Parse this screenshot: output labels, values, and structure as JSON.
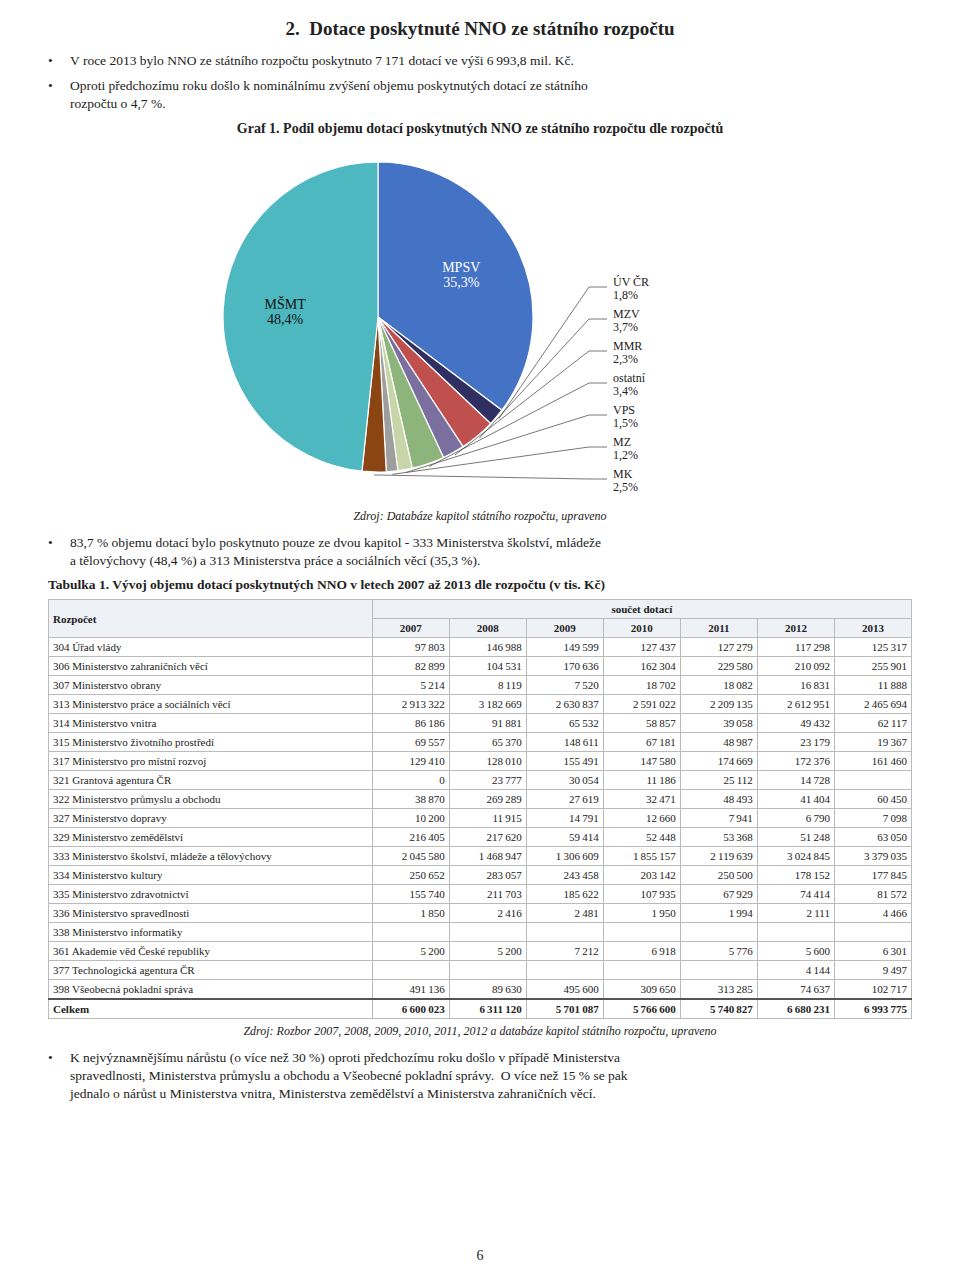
{
  "heading": "2.  Dotace poskytnuté NNO ze státního rozpočtu",
  "bullet_symbol": "•",
  "intro_bullets": [
    [
      "V roce 2013 bylo NNO ze státního rozpočtu poskytnuto 7 171 dotací ve výši 6 993,8 mil. Kč."
    ],
    [
      "Oproti předchozímu roku došlo k nominálnímu zvýšení objemu poskytnutých dotací ze státního",
      "rozpočtu o 4,7 %."
    ]
  ],
  "chart_data": {
    "type": "pie",
    "title": "Graf 1. Podíl objemu dotací poskytnutých NNO ze státního rozpočtu dle rozpočtů",
    "categories": [
      "MPSV",
      "ÚV ČR",
      "MZV",
      "MMR",
      "ostatní",
      "VPS",
      "MZ",
      "MK",
      "MŠMT"
    ],
    "values": [
      35.3,
      1.8,
      3.7,
      2.3,
      3.4,
      1.5,
      1.2,
      2.5,
      48.4
    ],
    "value_labels": [
      "35,3%",
      "1,8%",
      "3,7%",
      "2,3%",
      "3,4%",
      "1,5%",
      "1,2%",
      "2,5%",
      "48,4%"
    ],
    "colors": [
      "#4472C4",
      "#2F3061",
      "#C0504D",
      "#7B6FA0",
      "#8DB47A",
      "#C8D5A8",
      "#9E9E9E",
      "#8B4513",
      "#4DB8BF"
    ],
    "data_labels": true
  },
  "chart_source": "Zdroj: Databáze kapitol státního rozpočtu, upraveno",
  "middle_bullets": [
    [
      "83,7 % objemu dotací bylo poskytnuto pouze ze dvou kapitol - 333 Ministerstva školství, mládeže",
      "a tělovýchovy (48,4 %) a 313 Ministerstva práce a sociálních věcí (35,3 %)."
    ]
  ],
  "table": {
    "title": "Tabulka 1. Vývoj objemu dotací poskytnutých NNO v letech 2007 až 2013 dle rozpočtu (v tis. Kč)",
    "header_label": "Rozpočet",
    "header_group": "součet dotací",
    "columns": [
      "2007",
      "2008",
      "2009",
      "2010",
      "2011",
      "2012",
      "2013"
    ],
    "rows": [
      [
        "304 Úřad vlády",
        "97 803",
        "146 988",
        "149 599",
        "127 437",
        "127 279",
        "117 298",
        "125 317"
      ],
      [
        "306 Ministerstvo zahraničních věcí",
        "82 899",
        "104 531",
        "170 636",
        "162 304",
        "229 580",
        "210 092",
        "255 901"
      ],
      [
        "307 Ministerstvo obrany",
        "5 214",
        "8 119",
        "7 520",
        "18 702",
        "18 082",
        "16 831",
        "11 888"
      ],
      [
        "313 Ministerstvo práce a sociálních věcí",
        "2 913 322",
        "3 182 669",
        "2 630 837",
        "2 591 022",
        "2 209 135",
        "2 612 951",
        "2 465 694"
      ],
      [
        "314 Ministerstvo vnitra",
        "86 186",
        "91 881",
        "65 532",
        "58 857",
        "39 058",
        "49 432",
        "62 117"
      ],
      [
        "315 Ministerstvo životního prostředí",
        "69 557",
        "65 370",
        "148 611",
        "67 181",
        "48 987",
        "23 179",
        "19 367"
      ],
      [
        "317 Ministerstvo pro místní rozvoj",
        "129 410",
        "128 010",
        "155 491",
        "147 580",
        "174 669",
        "172 376",
        "161 460"
      ],
      [
        "321 Grantová agentura ČR",
        "0",
        "23 777",
        "30 054",
        "11 186",
        "25 112",
        "14 728",
        null
      ],
      [
        "322 Ministerstvo průmyslu a obchodu",
        "38 870",
        "269 289",
        "27 619",
        "32 471",
        "48 493",
        "41 404",
        "60 450"
      ],
      [
        "327 Ministerstvo dopravy",
        "10 200",
        "11 915",
        "14 791",
        "12 660",
        "7 941",
        "6 790",
        "7 098"
      ],
      [
        "329 Ministerstvo zemědělství",
        "216 405",
        "217 620",
        "59 414",
        "52 448",
        "53 368",
        "51 248",
        "63 050"
      ],
      [
        "333 Ministerstvo školství, mládeže a tělovýchovy",
        "2 045 580",
        "1 468 947",
        "1 306 609",
        "1 855 157",
        "2 119 639",
        "3 024 845",
        "3 379 035"
      ],
      [
        "334 Ministerstvo kultury",
        "250 652",
        "283 057",
        "243 458",
        "203 142",
        "250 500",
        "178 152",
        "177 845"
      ],
      [
        "335 Ministerstvo zdravotnictví",
        "155 740",
        "211 703",
        "185 622",
        "107 935",
        "67 929",
        "74 414",
        "81 572"
      ],
      [
        "336 Ministerstvo spravedlnosti",
        "1 850",
        "2 416",
        "2 481",
        "1 950",
        "1 994",
        "2 111",
        "4 466"
      ],
      [
        "338 Ministerstvo informatiky",
        null,
        null,
        null,
        null,
        null,
        null,
        null
      ],
      [
        "361 Akademie věd České republiky",
        "5 200",
        "5 200",
        "7 212",
        "6 918",
        "5 776",
        "5 600",
        "6 301"
      ],
      [
        "377 Technologická agentura ČR",
        null,
        null,
        null,
        null,
        null,
        "4 144",
        "9 497"
      ],
      [
        "398 Všeobecná pokladní správa",
        "491 136",
        "89 630",
        "495 600",
        "309 650",
        "313 285",
        "74 637",
        "102 717"
      ]
    ],
    "total": [
      "Celkem",
      "6 600 023",
      "6 311 120",
      "5 701 087",
      "5 766 600",
      "5 740 827",
      "6 680 231",
      "6 993 775"
    ],
    "source": "Zdroj: Rozbor 2007, 2008, 2009, 2010, 2011, 2012 a databáze kapitol státního rozpočtu, upraveno"
  },
  "closing_bullets": [
    [
      "K nejvýznамnějšímu nárůstu (o více než 30 %) oproti předchozímu roku došlo v případě Ministerstva",
      "spravedlnosti, Ministerstva průmyslu a obchodu a Všeobecné pokladní správy.  O více než 15 % se pak",
      "jednalo o nárůst u Ministerstva vnitra, Ministerstva zemědělství a Ministerstva zahraničních věcí."
    ]
  ],
  "page_number": "6"
}
